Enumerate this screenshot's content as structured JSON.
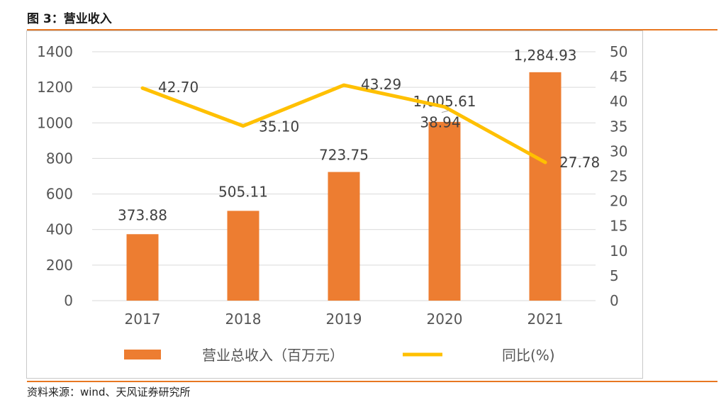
{
  "header": {
    "title": "图 3：营业收入"
  },
  "footer": {
    "source": "资料来源：wind、天风证券研究所"
  },
  "colors": {
    "bar": "#ed7d31",
    "line": "#ffc000",
    "rule": "#e87722"
  },
  "chart_data": {
    "type": "bar",
    "categories": [
      "2017",
      "2018",
      "2019",
      "2020",
      "2021"
    ],
    "series": [
      {
        "name": "营业总收入（百万元）",
        "type": "bar",
        "axis": "left",
        "values": [
          373.88,
          505.11,
          723.75,
          1005.61,
          1284.93
        ],
        "labels": [
          "373.88",
          "505.11",
          "723.75",
          "1,005.61",
          "1,284.93"
        ]
      },
      {
        "name": "同比(%)",
        "type": "line",
        "axis": "right",
        "values": [
          42.7,
          35.1,
          43.29,
          38.94,
          27.78
        ],
        "labels": [
          "42.70",
          "35.10",
          "43.29",
          "38.94",
          "27.78"
        ]
      }
    ],
    "y_left": {
      "min": 0,
      "max": 1400,
      "ticks": [
        "0",
        "200",
        "400",
        "600",
        "800",
        "1000",
        "1200",
        "1400"
      ]
    },
    "y_right": {
      "min": 0,
      "max": 50,
      "ticks": [
        "0",
        "5",
        "10",
        "15",
        "20",
        "25",
        "30",
        "35",
        "40",
        "45",
        "50"
      ]
    },
    "grid": true,
    "legend": {
      "position": "bottom"
    }
  }
}
